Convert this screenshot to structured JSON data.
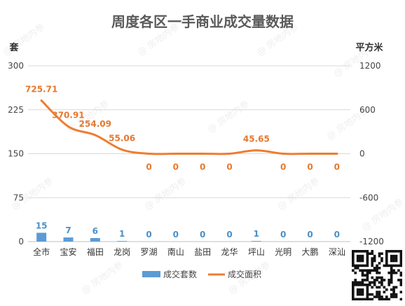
{
  "chart_data": {
    "type": "bar+line",
    "title": "周度各区一手商业成交量数据",
    "categories": [
      "全市",
      "宝安",
      "福田",
      "龙岗",
      "罗湖",
      "南山",
      "盐田",
      "龙华",
      "坪山",
      "光明",
      "大鹏",
      "深汕"
    ],
    "y_left_label": "套",
    "y_right_label": "平方米",
    "y_left_ticks": [
      "0",
      "75",
      "150",
      "225",
      "300"
    ],
    "y_right_ticks": [
      "-1200",
      "-600",
      "0",
      "600",
      "1200"
    ],
    "y_left_range": [
      0,
      300
    ],
    "y_right_range": [
      -1200,
      1200
    ],
    "series": [
      {
        "name": "成交套数",
        "type": "bar",
        "axis": "left",
        "color": "#5b9bd5",
        "values": [
          15,
          7,
          6,
          1,
          0,
          0,
          0,
          0,
          1,
          0,
          0,
          0
        ],
        "labels": [
          "15",
          "7",
          "6",
          "1",
          "0",
          "0",
          "0",
          "0",
          "1",
          "0",
          "0",
          "0"
        ]
      },
      {
        "name": "成交面积",
        "type": "line",
        "axis": "right",
        "color": "#ed7d31",
        "values": [
          725.71,
          370.91,
          254.09,
          55.06,
          0,
          0,
          0,
          0,
          45.65,
          0,
          0,
          0
        ],
        "labels": [
          "725.71",
          "370.91",
          "254.09",
          "55.06",
          "0",
          "0",
          "0",
          "0",
          "45.65",
          "0",
          "0",
          "0"
        ]
      }
    ],
    "legend_position": "bottom",
    "grid": true
  },
  "watermark_text": "@ 房地内参"
}
